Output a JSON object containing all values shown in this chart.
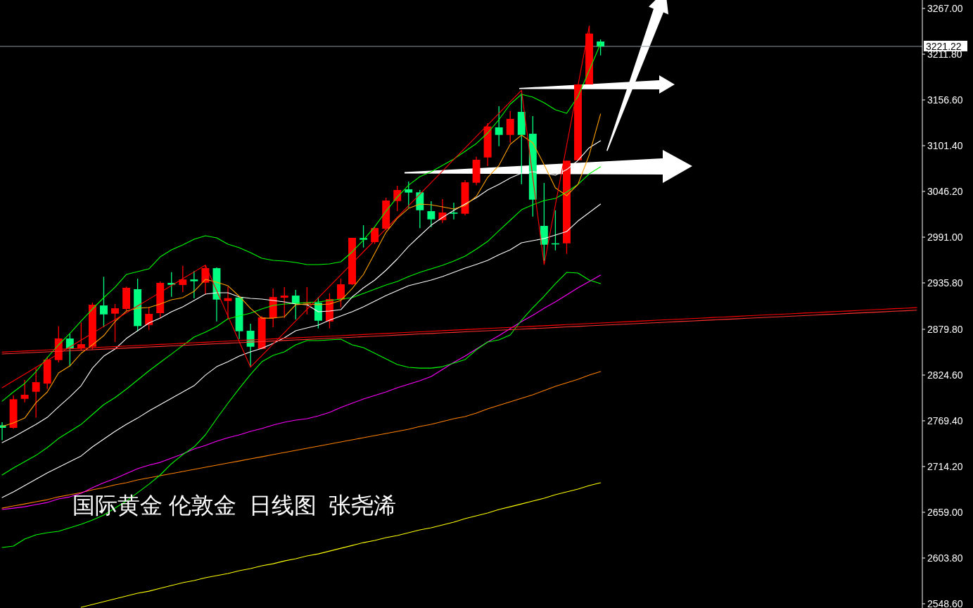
{
  "chart_data": {
    "type": "candlestick",
    "title": "国际黄金 伦敦金  日线图  张尧浠",
    "categories": [
      null,
      null,
      null,
      null,
      null,
      null,
      null,
      null,
      null,
      null,
      null,
      null,
      null,
      null,
      null,
      null,
      null,
      null,
      null,
      null,
      null,
      null,
      null,
      null,
      null,
      null,
      null,
      null,
      null,
      null,
      null,
      null,
      null,
      null,
      null,
      null,
      null,
      null,
      null,
      null,
      null,
      null,
      null,
      null,
      null,
      null,
      null,
      null,
      null,
      null,
      null,
      null,
      null,
      null,
      null,
      null,
      null,
      null,
      null,
      null,
      null,
      null,
      null,
      null,
      null,
      null,
      null,
      null,
      null,
      null,
      null,
      null,
      null,
      null,
      null,
      null,
      null,
      null,
      null,
      null,
      null,
      null
    ],
    "ohlc": [
      [
        2764.0,
        2767.7,
        2746.1,
        2760.9
      ],
      [
        2760.9,
        2800.2,
        2759.8,
        2795.4
      ],
      [
        2795.9,
        2818.6,
        2791.7,
        2800.8
      ],
      [
        2804.4,
        2832.8,
        2773.3,
        2816.0
      ],
      [
        2814.3,
        2846.9,
        2807.8,
        2843.2
      ],
      [
        2842.7,
        2883.7,
        2839.9,
        2868.7
      ],
      [
        2868.7,
        2874.4,
        2835.0,
        2856.3
      ],
      [
        2856.9,
        2888.0,
        2854.0,
        2861.9
      ],
      [
        2858.8,
        2912.0,
        2855.4,
        2909.4
      ],
      [
        2908.6,
        2943.2,
        2882.3,
        2897.8
      ],
      [
        2898.7,
        2910.5,
        2864.5,
        2905.2
      ],
      [
        2904.4,
        2931.3,
        2901.2,
        2929.9
      ],
      [
        2928.2,
        2940.9,
        2877.2,
        2883.7
      ],
      [
        2885.1,
        2906.9,
        2879.2,
        2898.4
      ],
      [
        2899.3,
        2937.5,
        2893.6,
        2935.8
      ],
      [
        2935.8,
        2948.8,
        2919.1,
        2933.5
      ],
      [
        2933.3,
        2956.5,
        2924.8,
        2940.0
      ],
      [
        2940.0,
        2950.2,
        2917.1,
        2937.8
      ],
      [
        2936.1,
        2957.3,
        2922.0,
        2953.6
      ],
      [
        2953.6,
        2954.5,
        2889.3,
        2915.7
      ],
      [
        2914.0,
        2931.3,
        2891.6,
        2917.4
      ],
      [
        2918.2,
        2918.2,
        2868.1,
        2877.5
      ],
      [
        2878.1,
        2886.5,
        2834.2,
        2858.8
      ],
      [
        2856.2,
        2895.6,
        2856.2,
        2894.2
      ],
      [
        2893.3,
        2929.0,
        2882.3,
        2918.8
      ],
      [
        2918.0,
        2930.7,
        2893.6,
        2920.5
      ],
      [
        2920.5,
        2927.3,
        2891.6,
        2910.6
      ],
      [
        2910.9,
        2930.7,
        2897.8,
        2912.3
      ],
      [
        2912.0,
        2918.6,
        2880.9,
        2890.2
      ],
      [
        2889.3,
        2923.3,
        2880.9,
        2916.3
      ],
      [
        2915.7,
        2940.9,
        2906.3,
        2934.1
      ],
      [
        2934.1,
        2990.2,
        2933.3,
        2990.2
      ],
      [
        2989.9,
        3005.4,
        2978.5,
        2987.9
      ],
      [
        2985.1,
        3003.1,
        2982.8,
        3002.0
      ],
      [
        3001.2,
        3038.6,
        2999.2,
        3035.2
      ],
      [
        3034.6,
        3053.0,
        3022.4,
        3047.9
      ],
      [
        3048.7,
        3058.1,
        3026.7,
        3044.8
      ],
      [
        3045.1,
        3047.9,
        3001.8,
        3023.5
      ],
      [
        3022.4,
        3034.3,
        3003.1,
        3012.5
      ],
      [
        3011.6,
        3036.9,
        3008.2,
        3020.7
      ],
      [
        3020.7,
        3032.6,
        3012.5,
        3019.3
      ],
      [
        3019.3,
        3059.8,
        3017.3,
        3057.2
      ],
      [
        3056.7,
        3088.1,
        3053.6,
        3084.4
      ],
      [
        3087.2,
        3128.6,
        3076.8,
        3124.6
      ],
      [
        3123.5,
        3149.0,
        3100.8,
        3114.4
      ],
      [
        3114.4,
        3143.3,
        3105.1,
        3133.7
      ],
      [
        3142.2,
        3165.0,
        3054.9,
        3114.4
      ],
      [
        3115.8,
        3137.1,
        3015.9,
        3036.3
      ],
      [
        3004.6,
        3056.4,
        2962.5,
        2981.9
      ],
      [
        2983.6,
        3023.3,
        2975.1,
        2982.5
      ],
      [
        2983.6,
        3083.3,
        2970.9,
        3083.3
      ],
      [
        3083.8,
        3175.3,
        3083.8,
        3175.3
      ],
      [
        3175.3,
        3246.0,
        3175.3,
        3236.7
      ],
      [
        3227.1,
        3229.6,
        3210.4,
        3221.2
      ],
      null,
      null,
      null,
      null,
      null,
      null,
      null,
      null,
      null,
      null,
      null,
      null,
      null,
      null,
      null,
      null,
      null,
      null,
      null,
      null,
      null,
      null,
      null,
      null,
      null,
      null,
      null,
      null
    ],
    "colors": [
      "#00ff80",
      "#ff0000",
      "#ff0000",
      "#ff0000",
      "#ff0000",
      "#ff0000",
      "#00ff80",
      "#ff0000",
      "#ff0000",
      "#00ff80",
      "#ff0000",
      "#ff0000",
      "#00ff80",
      "#ff0000",
      "#ff0000",
      "#00ff80",
      "#ff0000",
      "#00ff80",
      "#ff0000",
      "#00ff80",
      "#ff0000",
      "#00ff80",
      "#00ff80",
      "#ff0000",
      "#ff0000",
      "#ff0000",
      "#00ff80",
      "#ff0000",
      "#00ff80",
      "#ff0000",
      "#ff0000",
      "#ff0000",
      "#00ff80",
      "#ff0000",
      "#ff0000",
      "#ff0000",
      "#00ff80",
      "#00ff80",
      "#00ff80",
      "#ff0000",
      "#00ff80",
      "#ff0000",
      "#ff0000",
      "#ff0000",
      "#00ff80",
      "#ff0000",
      "#00ff80",
      "#00ff80",
      "#00ff80",
      "#00ff80",
      "#ff0000",
      "#ff0000",
      "#ff0000",
      "#00ff80",
      null,
      null,
      null,
      null,
      null,
      null,
      null,
      null,
      null,
      null,
      null,
      null,
      null,
      null,
      null,
      null,
      null,
      null,
      null,
      null,
      null,
      null,
      null,
      null,
      null,
      null,
      null,
      null
    ],
    "series": [
      {
        "type": "line",
        "color": "#ffff00",
        "values": [
          null,
          null,
          null,
          null,
          null,
          null,
          null,
          2544.3,
          2547.7,
          2551.1,
          2554.5,
          2557.9,
          2561.3,
          2563.8,
          2567.2,
          2570.6,
          2574.0,
          2576.6,
          2580.0,
          2582.5,
          2585.1,
          2588.5,
          2591.0,
          2594.4,
          2596.9,
          2600.3,
          2602.9,
          2606.3,
          2608.8,
          2612.2,
          2615.6,
          2619.0,
          2622.4,
          2625.0,
          2628.4,
          2630.9,
          2634.3,
          2637.7,
          2640.3,
          2643.7,
          2647.1,
          2651.3,
          2654.7,
          2658.1,
          2662.4,
          2665.7,
          2669.1,
          2672.6,
          2675.9,
          2680.2,
          2683.6,
          2687.0,
          2691.2,
          2694.6,
          null,
          null,
          null,
          null,
          null,
          null,
          null,
          null,
          null,
          null,
          null,
          null,
          null,
          null,
          null,
          null,
          null,
          null,
          null,
          null,
          null,
          null,
          null,
          null,
          null,
          null,
          null,
          null
        ]
      },
      {
        "type": "line",
        "color": "#ff8000",
        "values": [
          2664.0,
          2666.6,
          2669.1,
          2671.7,
          2674.2,
          2677.6,
          2680.2,
          2682.7,
          2686.1,
          2688.7,
          2692.1,
          2694.6,
          2698.0,
          2700.6,
          2703.1,
          2705.7,
          2708.2,
          2710.8,
          2713.3,
          2715.9,
          2718.4,
          2720.9,
          2723.5,
          2726.0,
          2728.6,
          2731.1,
          2733.7,
          2736.2,
          2738.8,
          2741.3,
          2743.9,
          2746.4,
          2749.0,
          2751.5,
          2754.1,
          2756.6,
          2759.2,
          2762.6,
          2765.1,
          2768.5,
          2771.9,
          2774.5,
          2778.7,
          2783.8,
          2788.0,
          2792.3,
          2796.5,
          2800.8,
          2805.9,
          2811.0,
          2815.2,
          2819.5,
          2824.5,
          2828.8,
          null,
          null,
          null,
          null,
          null,
          null,
          null,
          null,
          null,
          null,
          null,
          null,
          null,
          null,
          null,
          null,
          null,
          null,
          null,
          null,
          null,
          null,
          null,
          null,
          null,
          null,
          null,
          null
        ]
      },
      {
        "type": "line",
        "color": "#ff00ff",
        "values": [
          2662.4,
          2664.0,
          2665.7,
          2668.3,
          2670.8,
          2675.1,
          2677.6,
          2681.9,
          2688.7,
          2694.6,
          2699.7,
          2705.7,
          2711.6,
          2715.9,
          2719.2,
          2724.3,
          2729.4,
          2735.4,
          2739.6,
          2744.7,
          2749.0,
          2752.4,
          2756.6,
          2760.0,
          2764.3,
          2767.7,
          2770.2,
          2771.9,
          2775.3,
          2779.5,
          2785.5,
          2790.6,
          2795.7,
          2799.9,
          2804.2,
          2809.3,
          2813.5,
          2817.8,
          2822.9,
          2831.3,
          2839.9,
          2847.5,
          2856.0,
          2864.5,
          2872.1,
          2880.6,
          2889.1,
          2896.7,
          2905.2,
          2912.9,
          2921.4,
          2929.9,
          2937.5,
          2945.1,
          null,
          null,
          null,
          null,
          null,
          null,
          null,
          null,
          null,
          null,
          null,
          null,
          null,
          null,
          null,
          null,
          null,
          null,
          null,
          null,
          null,
          null,
          null,
          null,
          null,
          null,
          null,
          null
        ]
      },
      {
        "type": "line",
        "color": "#00ff00",
        "values": [
          2616.5,
          2618.2,
          2626.7,
          2631.8,
          2634.3,
          2636.0,
          2640.3,
          2644.5,
          2649.6,
          2655.6,
          2664.1,
          2672.5,
          2682.7,
          2692.9,
          2704.0,
          2717.6,
          2728.6,
          2737.9,
          2752.4,
          2771.9,
          2790.6,
          2808.4,
          2825.4,
          2840.7,
          2848.3,
          2852.6,
          2861.1,
          2866.2,
          2866.2,
          2867.0,
          2867.9,
          2861.1,
          2857.7,
          2850.9,
          2844.1,
          2837.3,
          2833.9,
          2833.0,
          2833.0,
          2834.7,
          2839.0,
          2843.2,
          2855.1,
          2864.5,
          2867.0,
          2873.0,
          2890.8,
          2905.9,
          2919.7,
          2934.9,
          2948.5,
          2947.7,
          2939.2,
          2934.9,
          null,
          null,
          null,
          null,
          null,
          null,
          null,
          null,
          null,
          null,
          null,
          null,
          null,
          null,
          null,
          null,
          null,
          null,
          null,
          null,
          null,
          null,
          null,
          null,
          null,
          null,
          null,
          null
        ]
      },
      {
        "type": "line",
        "color": "#00ff00",
        "values": [
          2704.0,
          2712.5,
          2720.1,
          2727.7,
          2737.1,
          2748.1,
          2756.6,
          2765.1,
          2777.0,
          2788.9,
          2797.4,
          2807.6,
          2818.6,
          2829.7,
          2839.9,
          2850.0,
          2860.2,
          2870.4,
          2876.4,
          2883.2,
          2892.5,
          2895.9,
          2899.3,
          2904.4,
          2908.6,
          2910.3,
          2911.2,
          2912.0,
          2912.9,
          2914.6,
          2916.3,
          2918.0,
          2923.1,
          2928.2,
          2933.3,
          2937.5,
          2943.5,
          2948.5,
          2952.8,
          2957.0,
          2962.1,
          2968.1,
          2976.6,
          2985.9,
          2998.7,
          3011.4,
          3024.1,
          3030.1,
          3035.2,
          3037.7,
          3045.4,
          3054.7,
          3067.4,
          3075.9,
          null,
          null,
          null,
          null,
          null,
          null,
          null,
          null,
          null,
          null,
          null,
          null,
          null,
          null,
          null,
          null,
          null,
          null,
          null,
          null,
          null,
          null,
          null,
          null,
          null,
          null,
          null,
          null
        ]
      },
      {
        "type": "line",
        "color": "#00ff00",
        "values": [
          2793.1,
          2804.2,
          2814.4,
          2828.8,
          2845.8,
          2861.1,
          2874.7,
          2889.9,
          2904.4,
          2918.0,
          2930.7,
          2946.0,
          2949.4,
          2952.8,
          2967.2,
          2975.7,
          2981.7,
          2988.5,
          2992.7,
          2990.2,
          2982.5,
          2978.3,
          2972.3,
          2965.5,
          2963.0,
          2962.1,
          2960.4,
          2957.9,
          2957.9,
          2958.7,
          2961.3,
          2973.2,
          2987.6,
          3003.7,
          3022.4,
          3039.4,
          3053.8,
          3064.0,
          3070.0,
          3077.6,
          3085.3,
          3094.6,
          3104.0,
          3116.7,
          3132.8,
          3151.5,
          3163.4,
          3160.0,
          3153.2,
          3144.7,
          3140.5,
          3160.8,
          3192.3,
          3224.5,
          null,
          null,
          null,
          null,
          null,
          null,
          null,
          null,
          null,
          null,
          null,
          null,
          null,
          null,
          null,
          null,
          null,
          null,
          null,
          null,
          null,
          null,
          null,
          null,
          null,
          null,
          null,
          null
        ]
      },
      {
        "type": "line",
        "color": "#ffffff",
        "values": [
          2676.8,
          2683.6,
          2691.2,
          2698.9,
          2706.5,
          2713.3,
          2720.2,
          2727.0,
          2738.0,
          2747.3,
          2756.6,
          2765.1,
          2772.7,
          2781.2,
          2788.9,
          2796.5,
          2804.2,
          2811.8,
          2824.5,
          2834.7,
          2840.7,
          2847.5,
          2852.6,
          2856.8,
          2862.8,
          2869.6,
          2878.1,
          2881.5,
          2884.9,
          2890.8,
          2895.9,
          2901.0,
          2906.9,
          2913.7,
          2920.5,
          2926.5,
          2932.4,
          2935.8,
          2939.2,
          2943.5,
          2948.5,
          2953.6,
          2958.1,
          2963.0,
          2969.8,
          2975.7,
          2984.2,
          2986.8,
          2989.3,
          2993.6,
          2997.8,
          3010.5,
          3020.7,
          3030.9,
          null,
          null,
          null,
          null,
          null,
          null,
          null,
          null,
          null,
          null,
          null,
          null,
          null,
          null,
          null,
          null,
          null,
          null,
          null,
          null,
          null,
          null,
          null,
          null,
          null,
          null,
          null,
          null
        ]
      },
      {
        "type": "line",
        "color": "#ffffff",
        "values": [
          2743.0,
          2749.8,
          2757.5,
          2765.1,
          2773.6,
          2786.3,
          2798.3,
          2811.8,
          2833.0,
          2847.5,
          2856.0,
          2868.7,
          2878.1,
          2887.4,
          2893.3,
          2901.0,
          2906.9,
          2914.6,
          2922.2,
          2923.9,
          2923.9,
          2918.8,
          2917.1,
          2916.3,
          2914.6,
          2912.9,
          2910.3,
          2909.5,
          2901.0,
          2901.8,
          2903.5,
          2918.8,
          2929.9,
          2939.2,
          2951.1,
          2964.7,
          2979.9,
          2992.7,
          3005.4,
          3014.8,
          3023.3,
          3030.9,
          3038.6,
          3047.9,
          3054.7,
          3062.3,
          3068.3,
          3070.0,
          3068.3,
          3065.7,
          3072.5,
          3083.6,
          3098.9,
          3107.3,
          null,
          null,
          null,
          null,
          null,
          null,
          null,
          null,
          null,
          null,
          null,
          null,
          null,
          null,
          null,
          null,
          null,
          null,
          null,
          null,
          null,
          null,
          null,
          null,
          null,
          null,
          null,
          null
        ]
      },
      {
        "type": "line",
        "color": "#ffa000",
        "values": [
          2762.6,
          2766.8,
          2772.7,
          2791.4,
          2804.2,
          2827.1,
          2835.6,
          2850.9,
          2861.1,
          2872.1,
          2889.1,
          2901.8,
          2905.2,
          2906.1,
          2910.3,
          2915.4,
          2918.0,
          2925.6,
          2940.0,
          2936.6,
          2932.4,
          2919.7,
          2905.2,
          2893.3,
          2893.3,
          2895.0,
          2909.5,
          2910.3,
          2909.5,
          2910.3,
          2914.6,
          2929.0,
          2946.0,
          2971.5,
          2996.9,
          3013.9,
          3025.8,
          3030.9,
          3030.1,
          3027.5,
          3025.0,
          3029.2,
          3040.3,
          3063.2,
          3077.6,
          3103.1,
          3114.1,
          3104.8,
          3078.5,
          3050.5,
          3041.1,
          3054.7,
          3090.4,
          3139.6,
          null,
          null,
          null,
          null,
          null,
          null,
          null,
          null,
          null,
          null,
          null,
          null,
          null,
          null,
          null,
          null,
          null,
          null,
          null,
          null,
          null,
          null,
          null,
          null,
          null,
          null,
          null,
          null
        ]
      },
      {
        "type": "line",
        "color": "#ff0000",
        "values": [
          2809.3,
          2817.5,
          2825.7,
          2834.0,
          2842.2,
          2850.4,
          2858.6,
          2866.9,
          2875.1,
          2883.3,
          2891.5,
          2899.7,
          2908.0,
          2916.2,
          2924.4,
          2932.6,
          2940.9,
          2949.1,
          2957.3,
          2926.5,
          2895.8,
          2865.0,
          2834.2,
          2848.1,
          2862.0,
          2875.9,
          2889.9,
          2903.8,
          2917.7,
          2931.6,
          2945.5,
          2959.4,
          2973.4,
          2987.3,
          3001.2,
          3015.1,
          3029.0,
          3042.9,
          3056.9,
          3070.8,
          3084.7,
          3098.6,
          3112.5,
          3126.4,
          3140.4,
          3154.3,
          3168.2,
          3063.1,
          2957.9,
          3029.9,
          3101.9,
          3174.0,
          3246.0,
          null,
          null,
          null,
          null,
          null,
          null,
          null,
          null,
          null,
          null,
          null,
          null,
          null,
          null,
          null,
          null,
          null,
          null,
          null,
          null,
          null,
          null,
          null,
          null,
          null,
          null,
          null,
          null,
          null
        ]
      },
      {
        "type": "line",
        "color": "#ff0000",
        "values": [
          2852.3,
          2853.0,
          2853.6,
          2854.3,
          2854.9,
          2855.6,
          2856.3,
          2856.9,
          2857.6,
          2858.3,
          2858.9,
          2859.6,
          2860.3,
          2860.9,
          2861.6,
          2862.2,
          2862.9,
          2863.6,
          2864.2,
          2864.9,
          2865.6,
          2866.2,
          2866.9,
          2867.5,
          2868.2,
          2868.9,
          2869.5,
          2870.2,
          2870.9,
          2871.5,
          2872.2,
          2872.9,
          2873.5,
          2874.2,
          2874.8,
          2875.5,
          2876.2,
          2876.8,
          2877.5,
          2878.2,
          2878.8,
          2879.5,
          2880.1,
          2880.8,
          2881.5,
          2882.1,
          2882.8,
          2883.5,
          2884.1,
          2884.8,
          2885.5,
          2886.1,
          2886.8,
          2887.4,
          2888.1,
          2888.8,
          2889.4,
          2890.1,
          2890.8,
          2891.4,
          2892.1,
          2892.7,
          2893.4,
          2894.1,
          2894.7,
          2895.4,
          2896.1,
          2896.7,
          2897.4,
          2898.0,
          2898.7,
          2899.4,
          2900.0,
          2900.7,
          2901.4,
          2902.0,
          2902.7,
          2903.4,
          2904.0,
          2904.7,
          2905.3,
          2906.0
        ]
      },
      {
        "type": "line",
        "color": "#ff3030",
        "values": [
          2850.0,
          2850.7,
          2851.3,
          2852.0,
          2852.6,
          2853.3,
          2853.9,
          2854.6,
          2855.2,
          2855.9,
          2856.5,
          2857.2,
          2857.8,
          2858.5,
          2859.1,
          2859.8,
          2860.4,
          2861.1,
          2861.8,
          2862.4,
          2863.1,
          2863.7,
          2864.4,
          2865.0,
          2865.7,
          2866.3,
          2867.0,
          2867.6,
          2868.3,
          2868.9,
          2869.6,
          2870.2,
          2870.9,
          2871.5,
          2872.2,
          2872.9,
          2873.5,
          2874.2,
          2874.8,
          2875.5,
          2876.1,
          2876.8,
          2877.4,
          2878.1,
          2878.7,
          2879.4,
          2880.0,
          2880.7,
          2881.3,
          2882.0,
          2882.7,
          2883.3,
          2884.0,
          2884.6,
          2885.3,
          2885.9,
          2886.6,
          2887.2,
          2887.9,
          2888.5,
          2889.2,
          2889.8,
          2890.5,
          2891.1,
          2891.8,
          2892.4,
          2893.1,
          2893.8,
          2894.4,
          2895.1,
          2895.7,
          2896.4,
          2897.0,
          2897.7,
          2898.3,
          2899.0,
          2899.6,
          2900.3,
          2900.9,
          2901.6,
          2902.2,
          2902.9
        ]
      }
    ],
    "ylim": [
      2543.5,
      3277.2
    ],
    "yticks": [
      {
        "value": 3267,
        "label": "3267.00"
      },
      {
        "value": 3211.8,
        "label": "3211.80"
      },
      {
        "value": 3156.6,
        "label": "3156.60"
      },
      {
        "value": 3101.4,
        "label": "3101.40"
      },
      {
        "value": 3046.2,
        "label": "3046.20"
      },
      {
        "value": 2991,
        "label": "2991.00"
      },
      {
        "value": 2935.8,
        "label": "2935.80"
      },
      {
        "value": 2879.8,
        "label": "2879.80"
      },
      {
        "value": 2824.6,
        "label": "2824.60"
      },
      {
        "value": 2769.4,
        "label": "2769.40"
      },
      {
        "value": 2714.2,
        "label": "2714.20"
      },
      {
        "value": 2659,
        "label": "2659.00"
      },
      {
        "value": 2603.8,
        "label": "2603.80"
      },
      {
        "value": 2548.6,
        "label": "2548.60"
      }
    ],
    "ref_lines": [
      {
        "axis": "y",
        "value": 3221.22,
        "label": "3221.22",
        "color": "#8c95a3"
      }
    ]
  }
}
